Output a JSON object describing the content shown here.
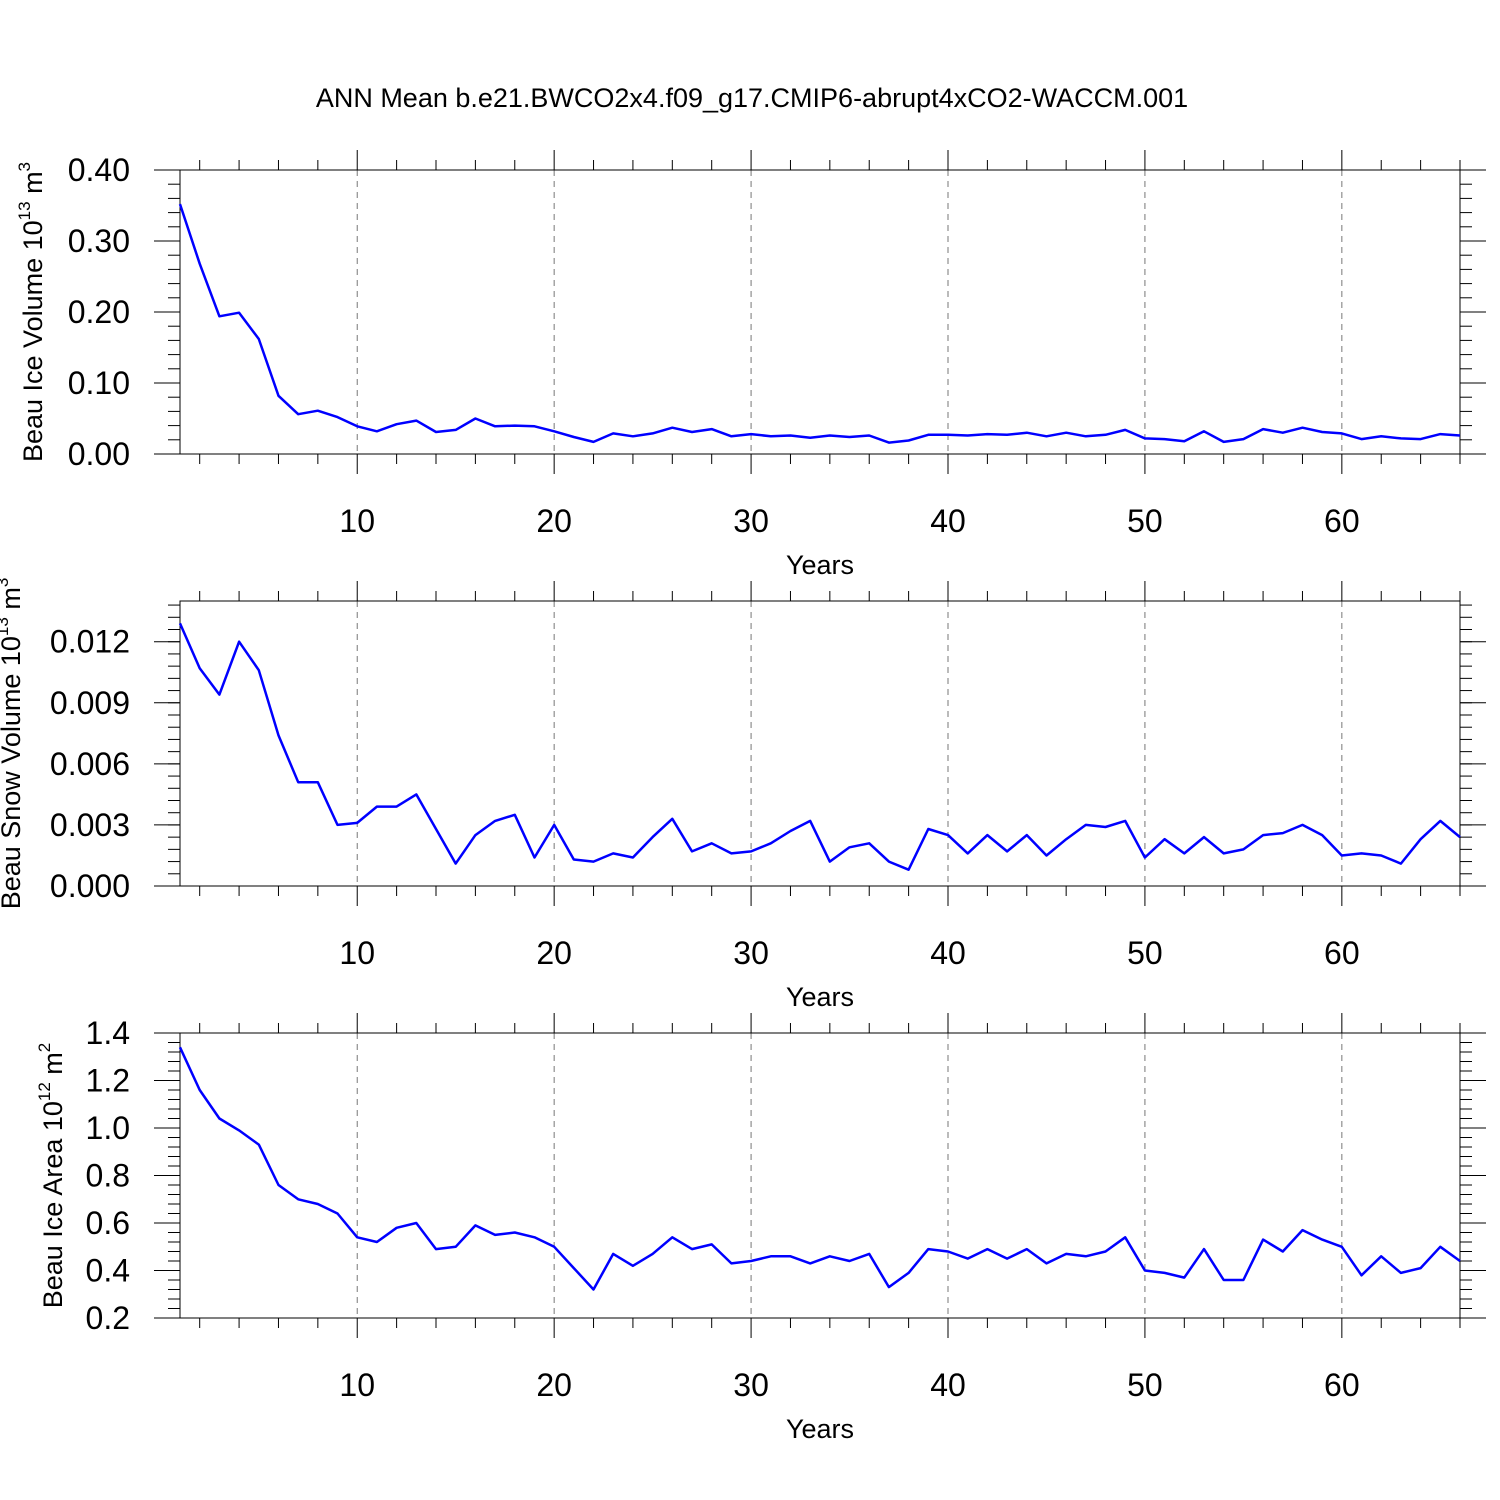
{
  "figure": {
    "title": "ANN Mean b.e21.BWCO2x4.f09_g17.CMIP6-abrupt4xCO2-WACCM.001"
  },
  "series_color": "#0000ff",
  "chart_data": [
    {
      "type": "line",
      "xlabel": "Years",
      "ylabel": "Beau Ice Volume 10",
      "ylabel_sup": "13",
      "ylabel_unit": " m",
      "ylabel_unit_sup": "3",
      "xlim": [
        1,
        66
      ],
      "ylim": [
        0.0,
        0.4
      ],
      "yticks": [
        0.0,
        0.1,
        0.2,
        0.3,
        0.4
      ],
      "ytick_labels": [
        "0.00",
        "0.10",
        "0.20",
        "0.30",
        "0.40"
      ],
      "xticks": [
        10,
        20,
        30,
        40,
        50,
        60
      ],
      "xtick_labels": [
        "10",
        "20",
        "30",
        "40",
        "50",
        "60"
      ],
      "grid_x": true,
      "x": [
        1,
        2,
        3,
        4,
        5,
        6,
        7,
        8,
        9,
        10,
        11,
        12,
        13,
        14,
        15,
        16,
        17,
        18,
        19,
        20,
        21,
        22,
        23,
        24,
        25,
        26,
        27,
        28,
        29,
        30,
        31,
        32,
        33,
        34,
        35,
        36,
        37,
        38,
        39,
        40,
        41,
        42,
        43,
        44,
        45,
        46,
        47,
        48,
        49,
        50,
        51,
        52,
        53,
        54,
        55,
        56,
        57,
        58,
        59,
        60,
        61,
        62,
        63,
        64,
        65,
        66
      ],
      "values": [
        0.352,
        0.268,
        0.194,
        0.199,
        0.162,
        0.082,
        0.056,
        0.061,
        0.052,
        0.039,
        0.032,
        0.042,
        0.047,
        0.031,
        0.034,
        0.05,
        0.039,
        0.04,
        0.039,
        0.032,
        0.024,
        0.017,
        0.029,
        0.025,
        0.029,
        0.037,
        0.031,
        0.035,
        0.025,
        0.028,
        0.025,
        0.026,
        0.023,
        0.026,
        0.024,
        0.026,
        0.016,
        0.019,
        0.027,
        0.027,
        0.026,
        0.028,
        0.027,
        0.03,
        0.025,
        0.03,
        0.025,
        0.027,
        0.034,
        0.022,
        0.021,
        0.018,
        0.032,
        0.017,
        0.021,
        0.035,
        0.03,
        0.037,
        0.031,
        0.029,
        0.021,
        0.025,
        0.022,
        0.021,
        0.028,
        0.026
      ]
    },
    {
      "type": "line",
      "xlabel": "Years",
      "ylabel": "Beau Snow Volume 10",
      "ylabel_sup": "13",
      "ylabel_unit": " m",
      "ylabel_unit_sup": "3",
      "xlim": [
        1,
        66
      ],
      "ylim": [
        0.0,
        0.014
      ],
      "yticks": [
        0.0,
        0.003,
        0.006,
        0.009,
        0.012
      ],
      "ytick_labels": [
        "0.000",
        "0.003",
        "0.006",
        "0.009",
        "0.012"
      ],
      "xticks": [
        10,
        20,
        30,
        40,
        50,
        60
      ],
      "xtick_labels": [
        "10",
        "20",
        "30",
        "40",
        "50",
        "60"
      ],
      "grid_x": true,
      "x": [
        1,
        2,
        3,
        4,
        5,
        6,
        7,
        8,
        9,
        10,
        11,
        12,
        13,
        14,
        15,
        16,
        17,
        18,
        19,
        20,
        21,
        22,
        23,
        24,
        25,
        26,
        27,
        28,
        29,
        30,
        31,
        32,
        33,
        34,
        35,
        36,
        37,
        38,
        39,
        40,
        41,
        42,
        43,
        44,
        45,
        46,
        47,
        48,
        49,
        50,
        51,
        52,
        53,
        54,
        55,
        56,
        57,
        58,
        59,
        60,
        61,
        62,
        63,
        64,
        65,
        66
      ],
      "values": [
        0.0129,
        0.0107,
        0.0094,
        0.012,
        0.0106,
        0.0074,
        0.0051,
        0.0051,
        0.003,
        0.0031,
        0.0039,
        0.0039,
        0.0045,
        0.0028,
        0.0011,
        0.0025,
        0.0032,
        0.0035,
        0.0014,
        0.003,
        0.0013,
        0.0012,
        0.0016,
        0.0014,
        0.0024,
        0.0033,
        0.0017,
        0.0021,
        0.0016,
        0.0017,
        0.0021,
        0.0027,
        0.0032,
        0.0012,
        0.0019,
        0.0021,
        0.0012,
        0.0008,
        0.0028,
        0.0025,
        0.0016,
        0.0025,
        0.0017,
        0.0025,
        0.0015,
        0.0023,
        0.003,
        0.0029,
        0.0032,
        0.0014,
        0.0023,
        0.0016,
        0.0024,
        0.0016,
        0.0018,
        0.0025,
        0.0026,
        0.003,
        0.0025,
        0.0015,
        0.0016,
        0.0015,
        0.0011,
        0.0023,
        0.0032,
        0.0024
      ]
    },
    {
      "type": "line",
      "xlabel": "Years",
      "ylabel": "Beau Ice Area 10",
      "ylabel_sup": "12",
      "ylabel_unit": " m",
      "ylabel_unit_sup": "2",
      "xlim": [
        1,
        66
      ],
      "ylim": [
        0.2,
        1.4
      ],
      "yticks": [
        0.2,
        0.4,
        0.6,
        0.8,
        1.0,
        1.2,
        1.4
      ],
      "ytick_labels": [
        "0.2",
        "0.4",
        "0.6",
        "0.8",
        "1.0",
        "1.2",
        "1.4"
      ],
      "xticks": [
        10,
        20,
        30,
        40,
        50,
        60
      ],
      "xtick_labels": [
        "10",
        "20",
        "30",
        "40",
        "50",
        "60"
      ],
      "grid_x": true,
      "x": [
        1,
        2,
        3,
        4,
        5,
        6,
        7,
        8,
        9,
        10,
        11,
        12,
        13,
        14,
        15,
        16,
        17,
        18,
        19,
        20,
        21,
        22,
        23,
        24,
        25,
        26,
        27,
        28,
        29,
        30,
        31,
        32,
        33,
        34,
        35,
        36,
        37,
        38,
        39,
        40,
        41,
        42,
        43,
        44,
        45,
        46,
        47,
        48,
        49,
        50,
        51,
        52,
        53,
        54,
        55,
        56,
        57,
        58,
        59,
        60,
        61,
        62,
        63,
        64,
        65,
        66
      ],
      "values": [
        1.34,
        1.16,
        1.04,
        0.99,
        0.93,
        0.76,
        0.7,
        0.68,
        0.64,
        0.54,
        0.52,
        0.58,
        0.6,
        0.49,
        0.5,
        0.59,
        0.55,
        0.56,
        0.54,
        0.5,
        0.41,
        0.32,
        0.47,
        0.42,
        0.47,
        0.54,
        0.49,
        0.51,
        0.43,
        0.44,
        0.46,
        0.46,
        0.43,
        0.46,
        0.44,
        0.47,
        0.33,
        0.39,
        0.49,
        0.48,
        0.45,
        0.49,
        0.45,
        0.49,
        0.43,
        0.47,
        0.46,
        0.48,
        0.54,
        0.4,
        0.39,
        0.37,
        0.49,
        0.36,
        0.36,
        0.53,
        0.48,
        0.57,
        0.53,
        0.5,
        0.38,
        0.46,
        0.39,
        0.41,
        0.5,
        0.44
      ]
    }
  ]
}
